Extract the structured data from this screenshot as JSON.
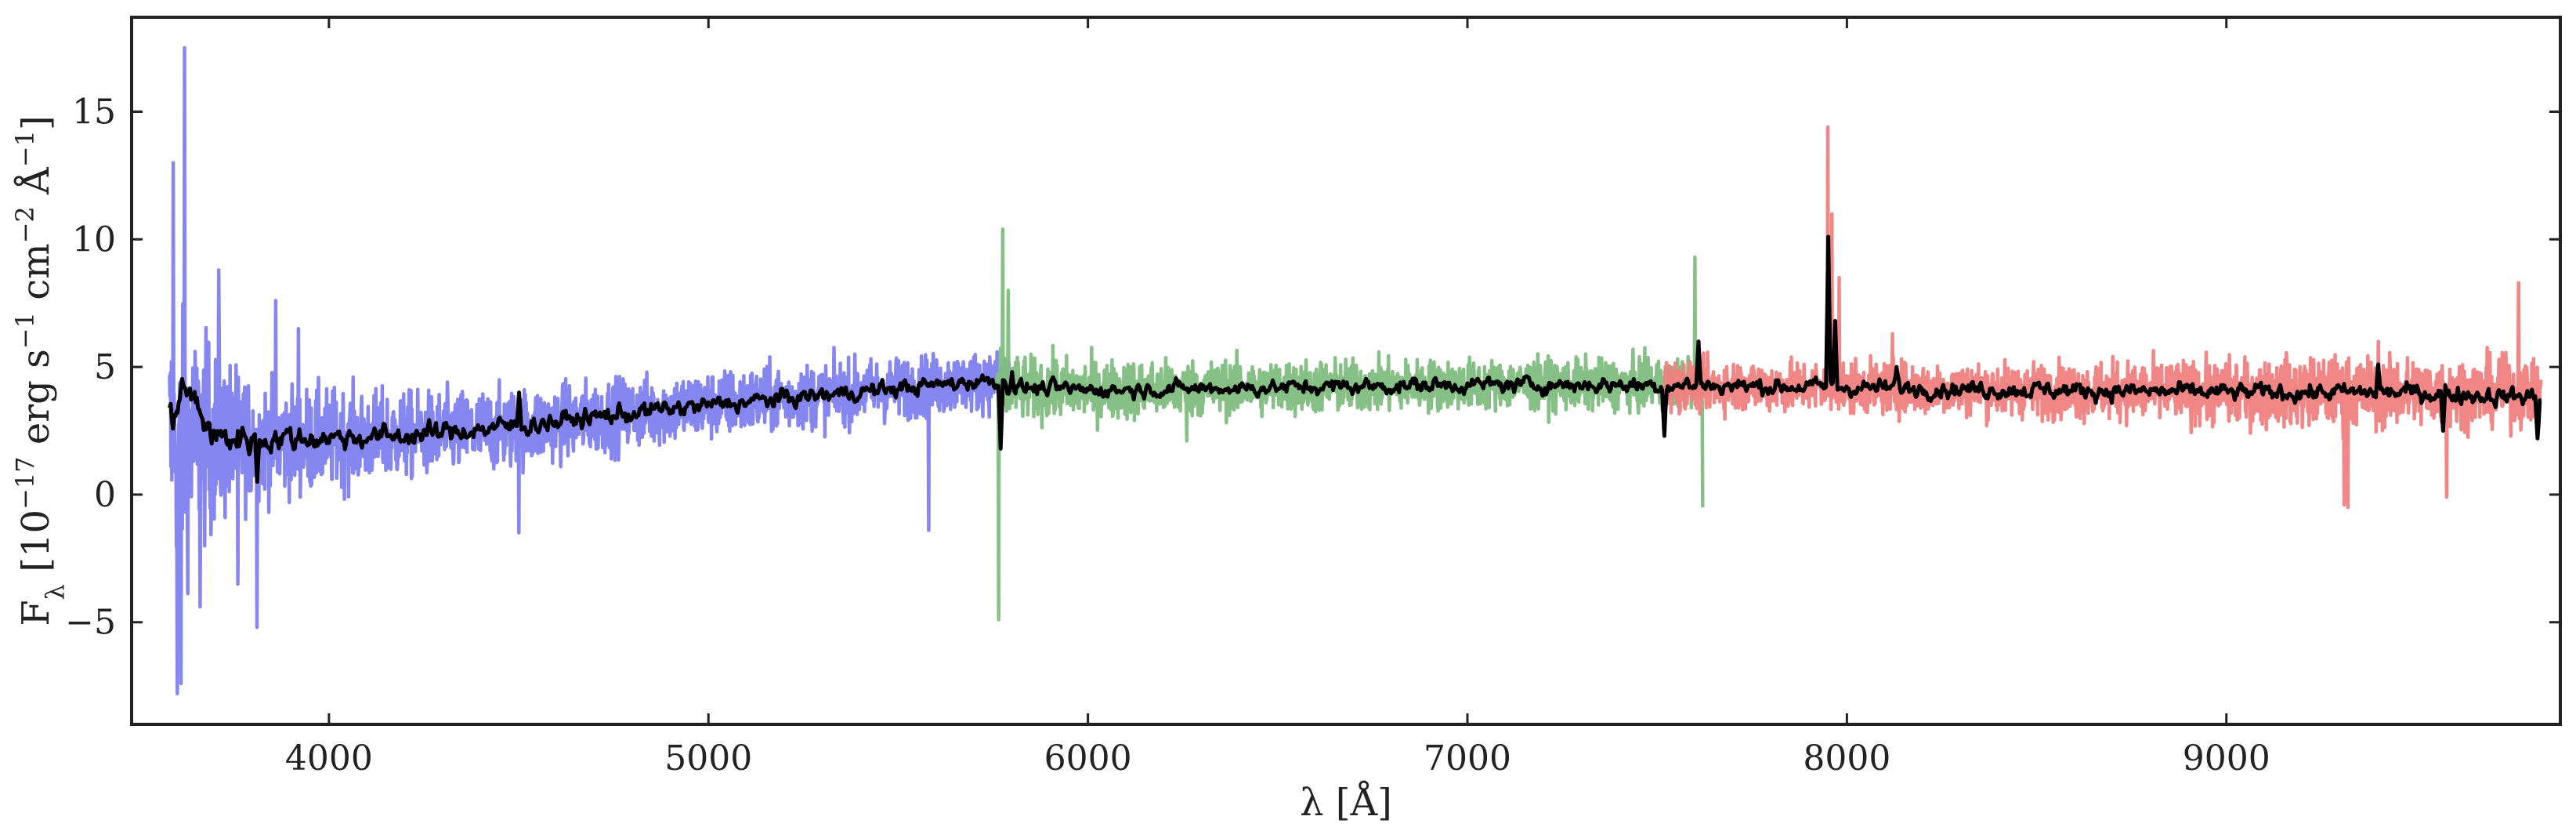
{
  "chart_data": {
    "type": "line",
    "title": "",
    "xlabel": "λ [Å]",
    "ylabel": "F_λ [10^-17 erg s^-1 cm^-2 Å^-1]",
    "xlim": [
      3480,
      9880
    ],
    "ylim": [
      -9.0,
      18.7
    ],
    "x_ticks": [
      4000,
      5000,
      6000,
      7000,
      8000,
      9000
    ],
    "x_tick_labels": [
      "4000",
      "5000",
      "6000",
      "7000",
      "8000",
      "9000"
    ],
    "y_ticks": [
      -5,
      0,
      5,
      10,
      15
    ],
    "y_tick_labels": [
      "−5",
      "0",
      "5",
      "10",
      "15"
    ],
    "grid": false,
    "legend": "none",
    "series": [
      {
        "color": "#8080f0",
        "x_range": [
          3580,
          5800
        ],
        "baseline": [
          [
            3580,
            2.0
          ],
          [
            3700,
            2.2
          ],
          [
            3900,
            2.1
          ],
          [
            4200,
            2.3
          ],
          [
            4500,
            2.6
          ],
          [
            4800,
            3.2
          ],
          [
            5000,
            3.5
          ],
          [
            5300,
            3.9
          ],
          [
            5600,
            4.3
          ],
          [
            5800,
            4.5
          ]
        ],
        "noise": [
          [
            3580,
            3.8
          ],
          [
            3650,
            3.0
          ],
          [
            3800,
            1.6
          ],
          [
            4200,
            1.2
          ],
          [
            4800,
            1.0
          ],
          [
            5300,
            0.9
          ],
          [
            5800,
            0.8
          ]
        ],
        "peaks": [
          [
            3620,
            17.5
          ],
          [
            3590,
            13.0
          ],
          [
            3600,
            -7.8
          ],
          [
            3610,
            -7.4
          ],
          [
            3660,
            -4.4
          ],
          [
            3710,
            8.8
          ],
          [
            3760,
            -3.5
          ],
          [
            3810,
            -5.2
          ],
          [
            3860,
            7.6
          ],
          [
            3920,
            6.5
          ],
          [
            4500,
            -1.5
          ],
          [
            5580,
            -1.4
          ]
        ]
      },
      {
        "color": "#80bd80",
        "x_range": [
          5760,
          7620
        ],
        "baseline": [
          [
            5760,
            4.2
          ],
          [
            6000,
            4.1
          ],
          [
            6500,
            4.2
          ],
          [
            7000,
            4.3
          ],
          [
            7500,
            4.3
          ],
          [
            7620,
            4.4
          ]
        ],
        "noise": [
          [
            5760,
            0.9
          ],
          [
            6200,
            0.8
          ],
          [
            7000,
            0.7
          ],
          [
            7620,
            0.7
          ]
        ],
        "peaks": [
          [
            5775,
            10.4
          ],
          [
            5765,
            -4.9
          ],
          [
            5790,
            8.0
          ],
          [
            7600,
            9.3
          ],
          [
            7620,
            -0.5
          ],
          [
            6260,
            2.1
          ]
        ]
      },
      {
        "color": "#f08080",
        "x_range": [
          7520,
          9830
        ],
        "baseline": [
          [
            7520,
            4.3
          ],
          [
            8000,
            4.2
          ],
          [
            8500,
            4.1
          ],
          [
            9000,
            4.0
          ],
          [
            9500,
            4.0
          ],
          [
            9830,
            4.0
          ]
        ],
        "noise": [
          [
            7520,
            0.7
          ],
          [
            8500,
            0.75
          ],
          [
            9300,
            1.0
          ],
          [
            9830,
            0.9
          ]
        ],
        "peaks": [
          [
            7950,
            14.4
          ],
          [
            7960,
            11.0
          ],
          [
            7980,
            8.5
          ],
          [
            9310,
            -0.4
          ],
          [
            9320,
            -0.5
          ],
          [
            9580,
            -0.1
          ],
          [
            9400,
            6.0
          ],
          [
            9770,
            8.3
          ],
          [
            8120,
            6.3
          ]
        ]
      },
      {
        "color": "#000000",
        "x_range": [
          3580,
          9830
        ],
        "baseline": [
          [
            3580,
            3.0
          ],
          [
            3620,
            4.2
          ],
          [
            3700,
            2.2
          ],
          [
            3900,
            2.2
          ],
          [
            4200,
            2.3
          ],
          [
            4500,
            2.7
          ],
          [
            4800,
            3.2
          ],
          [
            5000,
            3.5
          ],
          [
            5300,
            3.9
          ],
          [
            5600,
            4.3
          ],
          [
            5750,
            4.5
          ],
          [
            5800,
            4.2
          ],
          [
            6000,
            4.1
          ],
          [
            6500,
            4.2
          ],
          [
            7000,
            4.3
          ],
          [
            7500,
            4.3
          ],
          [
            8000,
            4.2
          ],
          [
            8500,
            4.1
          ],
          [
            9000,
            4.0
          ],
          [
            9500,
            4.0
          ],
          [
            9830,
            3.8
          ]
        ],
        "noise": [
          [
            3580,
            0.5
          ],
          [
            4000,
            0.3
          ],
          [
            6000,
            0.2
          ],
          [
            9830,
            0.25
          ]
        ],
        "peaks": [
          [
            3620,
            4.2
          ],
          [
            3810,
            0.5
          ],
          [
            4500,
            4.0
          ],
          [
            5770,
            1.8
          ],
          [
            5800,
            4.8
          ],
          [
            7520,
            2.3
          ],
          [
            7610,
            6.0
          ],
          [
            7950,
            10.1
          ],
          [
            7970,
            6.8
          ],
          [
            8130,
            5.0
          ],
          [
            9400,
            5.1
          ],
          [
            9570,
            2.5
          ],
          [
            9820,
            2.2
          ]
        ]
      }
    ]
  }
}
